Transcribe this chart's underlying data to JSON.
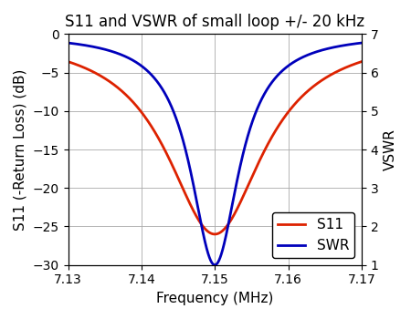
{
  "title": "S11 and VSWR of small loop +/- 20 kHz",
  "xlabel": "Frequency (MHz)",
  "ylabel_left": "S11 (-Return Loss) (dB)",
  "ylabel_right": "VSWR",
  "xlim": [
    7.13,
    7.17
  ],
  "ylim_left": [
    -30,
    0
  ],
  "ylim_right": [
    1,
    7
  ],
  "xticks": [
    7.13,
    7.14,
    7.15,
    7.16,
    7.17
  ],
  "yticks_left": [
    0,
    -5,
    -10,
    -15,
    -20,
    -25,
    -30
  ],
  "yticks_right": [
    1,
    2,
    3,
    4,
    5,
    6,
    7
  ],
  "fc": 7.15,
  "s11_min": -26.0,
  "swr_min": 1.0,
  "s11_bw": 0.008,
  "swr_bw": 0.004,
  "s11_color": "#dd2200",
  "swr_color": "#0000bb",
  "legend_s11": "S11",
  "legend_swr": "SWR",
  "bg_color": "#ffffff",
  "grid_color": "#aaaaaa",
  "line_width": 2.0,
  "title_fontsize": 12,
  "label_fontsize": 11,
  "tick_fontsize": 10,
  "legend_fontsize": 11
}
